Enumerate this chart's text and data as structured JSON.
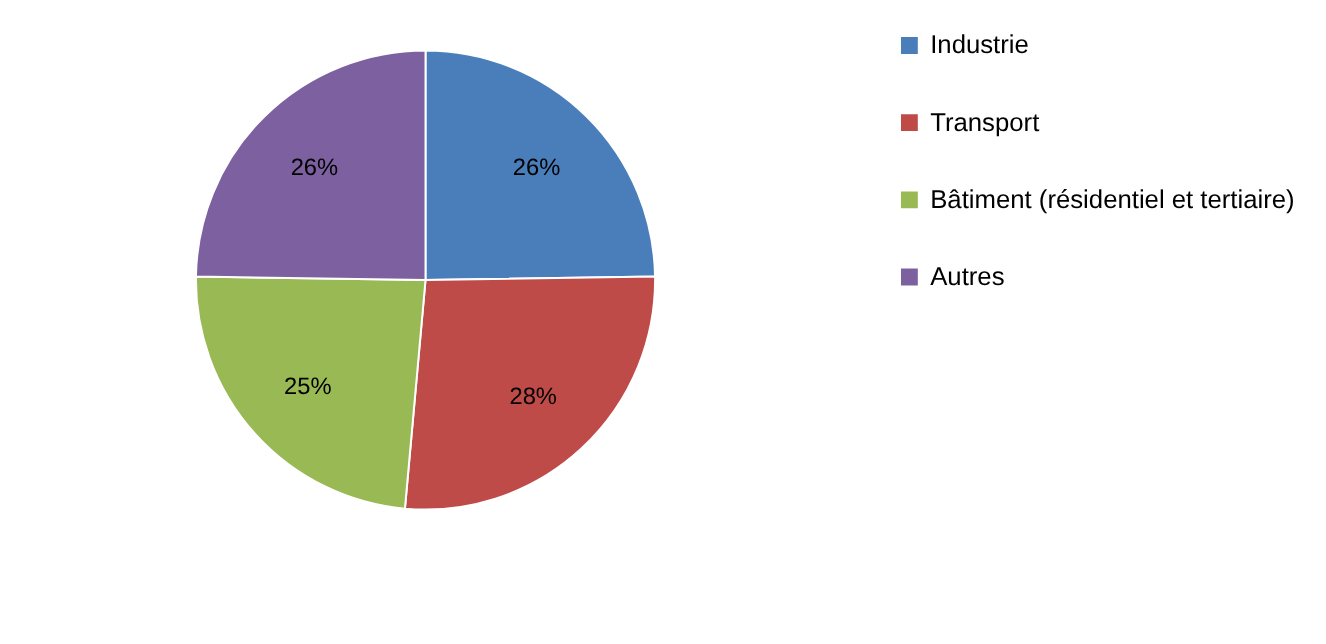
{
  "chart_data": {
    "type": "pie",
    "categories": [
      "Industrie",
      "Transport",
      "Bâtiment (résidentiel et tertiaire)",
      "Autres"
    ],
    "values": [
      26,
      28,
      25,
      26
    ],
    "colors": [
      "#4a7ebb",
      "#be4b48",
      "#98b954",
      "#7d60a0"
    ],
    "value_labels": [
      "26%",
      "28%",
      "25%",
      "26%"
    ],
    "legend": "right"
  }
}
